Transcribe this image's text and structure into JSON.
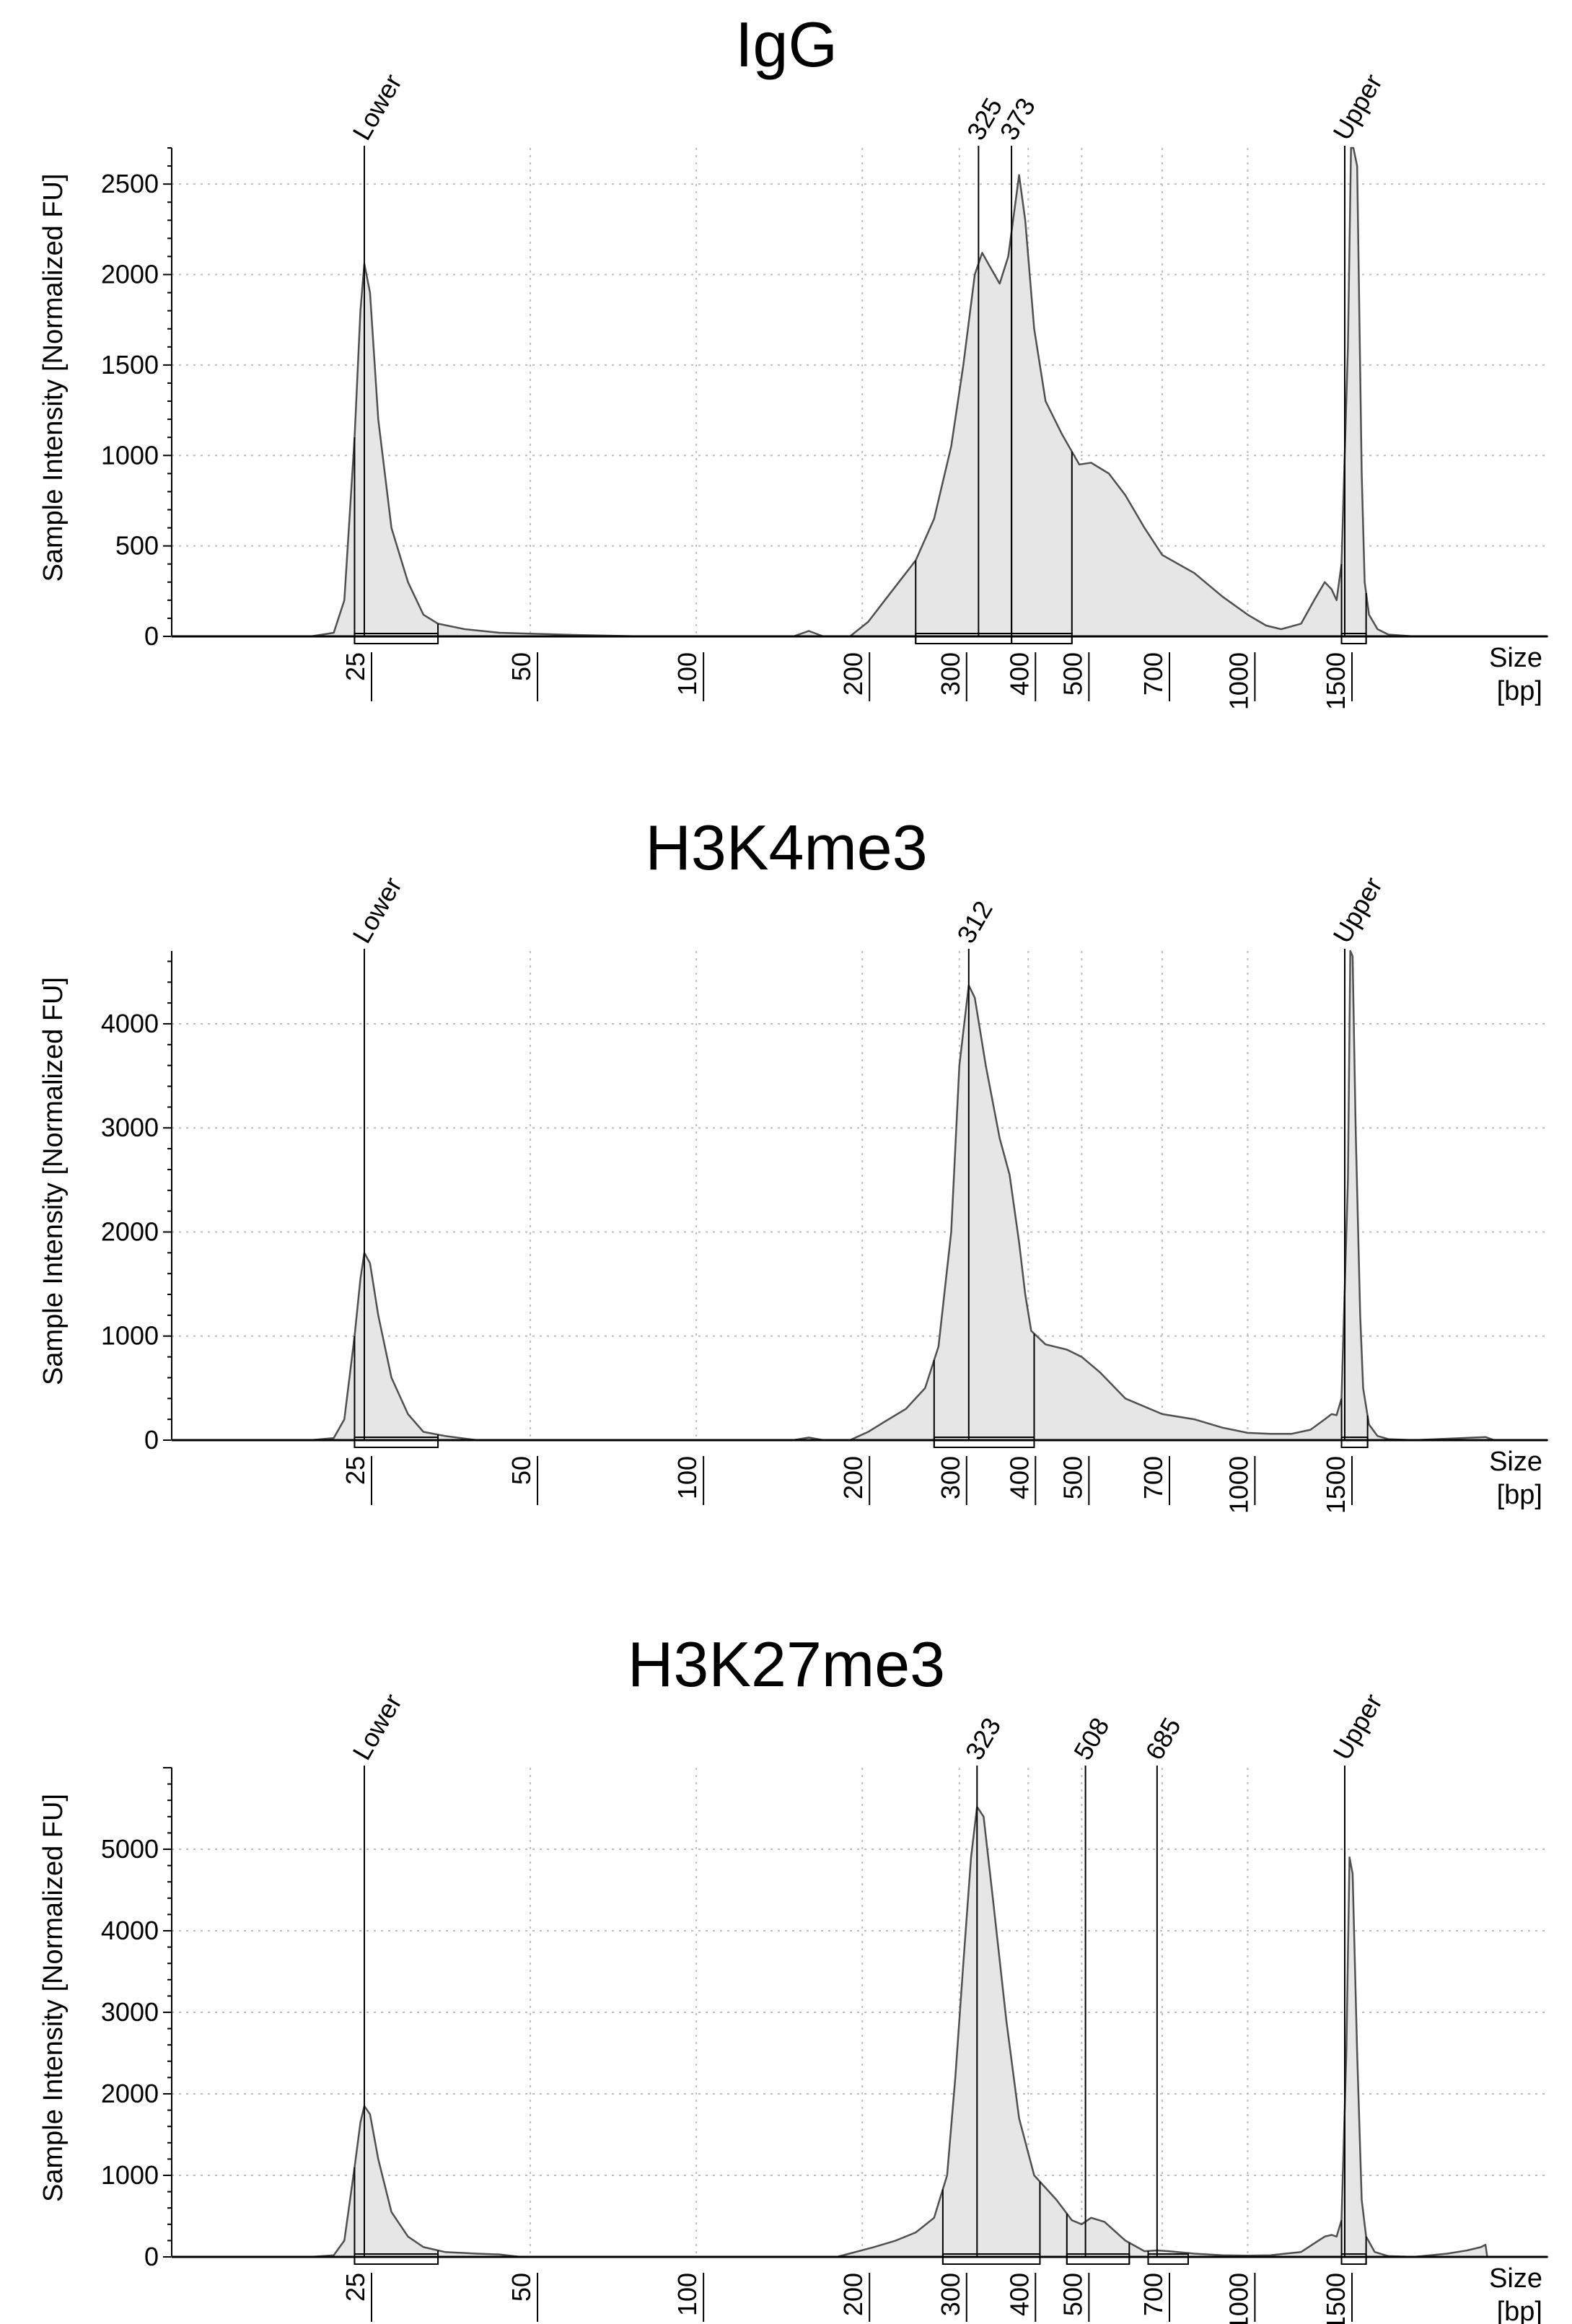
{
  "figure": {
    "size_axis": {
      "ticks": [
        25,
        50,
        100,
        200,
        300,
        400,
        500,
        700,
        1000,
        1500
      ],
      "label_line1": "Size",
      "label_line2": "[bp]"
    },
    "ylabel": "Sample Intensity [Normalized FU]"
  },
  "colors": {
    "trace_fill": "#e6e6e6",
    "trace_line": "#505050",
    "grid": "#bdbdbd"
  },
  "chart_data": [
    {
      "type": "area",
      "title": "IgG",
      "ylabel": "Sample Intensity [Normalized FU]",
      "xlabel": "Size [bp]",
      "x_scale": "log",
      "ylim": [
        0,
        2700
      ],
      "yticks": [
        0,
        500,
        1000,
        1500,
        2000,
        2500
      ],
      "grid": true,
      "peaks": [
        {
          "label": "Lower",
          "size": 25
        },
        {
          "label": "325",
          "size": 325
        },
        {
          "label": "373",
          "size": 373
        },
        {
          "label": "Upper",
          "size": 1500
        }
      ],
      "regions": [
        [
          24,
          34
        ],
        [
          250,
          373
        ],
        [
          373,
          480
        ],
        [
          1480,
          1640
        ]
      ],
      "trace": [
        [
          16,
          0
        ],
        [
          18,
          0
        ],
        [
          20,
          0
        ],
        [
          22,
          20
        ],
        [
          23,
          200
        ],
        [
          24,
          1100
        ],
        [
          24.6,
          1800
        ],
        [
          25,
          2060
        ],
        [
          25.6,
          1900
        ],
        [
          26.5,
          1200
        ],
        [
          28,
          600
        ],
        [
          30,
          300
        ],
        [
          32,
          120
        ],
        [
          34,
          70
        ],
        [
          38,
          40
        ],
        [
          44,
          20
        ],
        [
          50,
          15
        ],
        [
          60,
          8
        ],
        [
          80,
          0
        ],
        [
          120,
          0
        ],
        [
          150,
          0
        ],
        [
          160,
          30
        ],
        [
          170,
          0
        ],
        [
          190,
          0
        ],
        [
          205,
          80
        ],
        [
          225,
          240
        ],
        [
          250,
          420
        ],
        [
          270,
          650
        ],
        [
          290,
          1050
        ],
        [
          305,
          1500
        ],
        [
          320,
          2000
        ],
        [
          330,
          2120
        ],
        [
          340,
          2050
        ],
        [
          355,
          1950
        ],
        [
          368,
          2100
        ],
        [
          385,
          2550
        ],
        [
          395,
          2300
        ],
        [
          410,
          1700
        ],
        [
          430,
          1300
        ],
        [
          460,
          1120
        ],
        [
          495,
          950
        ],
        [
          520,
          960
        ],
        [
          560,
          900
        ],
        [
          600,
          780
        ],
        [
          650,
          600
        ],
        [
          700,
          450
        ],
        [
          800,
          350
        ],
        [
          900,
          220
        ],
        [
          1000,
          120
        ],
        [
          1080,
          60
        ],
        [
          1150,
          40
        ],
        [
          1250,
          70
        ],
        [
          1320,
          200
        ],
        [
          1380,
          300
        ],
        [
          1420,
          260
        ],
        [
          1450,
          200
        ],
        [
          1480,
          400
        ],
        [
          1520,
          1600
        ],
        [
          1540,
          2700
        ],
        [
          1555,
          2700
        ],
        [
          1580,
          2600
        ],
        [
          1610,
          900
        ],
        [
          1630,
          300
        ],
        [
          1660,
          120
        ],
        [
          1720,
          40
        ],
        [
          1800,
          10
        ],
        [
          2000,
          0
        ],
        [
          2800,
          0
        ]
      ]
    },
    {
      "type": "area",
      "title": "H3K4me3",
      "ylabel": "Sample Intensity [Normalized FU]",
      "xlabel": "Size [bp]",
      "x_scale": "log",
      "ylim": [
        0,
        4700
      ],
      "yticks": [
        0,
        1000,
        2000,
        3000,
        4000
      ],
      "grid": true,
      "peaks": [
        {
          "label": "Lower",
          "size": 25
        },
        {
          "label": "312",
          "size": 312
        },
        {
          "label": "Upper",
          "size": 1500
        }
      ],
      "regions": [
        [
          24,
          34
        ],
        [
          270,
          410
        ],
        [
          1480,
          1650
        ]
      ],
      "trace": [
        [
          16,
          0
        ],
        [
          18,
          0
        ],
        [
          20,
          0
        ],
        [
          22,
          20
        ],
        [
          23,
          200
        ],
        [
          24,
          1000
        ],
        [
          24.6,
          1550
        ],
        [
          25,
          1800
        ],
        [
          25.6,
          1700
        ],
        [
          26.5,
          1200
        ],
        [
          28,
          600
        ],
        [
          30,
          250
        ],
        [
          32,
          80
        ],
        [
          35,
          40
        ],
        [
          40,
          0
        ],
        [
          100,
          0
        ],
        [
          150,
          0
        ],
        [
          160,
          25
        ],
        [
          170,
          0
        ],
        [
          190,
          0
        ],
        [
          205,
          80
        ],
        [
          220,
          180
        ],
        [
          240,
          300
        ],
        [
          260,
          500
        ],
        [
          275,
          900
        ],
        [
          290,
          2000
        ],
        [
          300,
          3600
        ],
        [
          312,
          4370
        ],
        [
          320,
          4250
        ],
        [
          335,
          3600
        ],
        [
          355,
          2900
        ],
        [
          370,
          2550
        ],
        [
          385,
          1900
        ],
        [
          395,
          1400
        ],
        [
          405,
          1050
        ],
        [
          430,
          920
        ],
        [
          470,
          870
        ],
        [
          500,
          800
        ],
        [
          540,
          650
        ],
        [
          600,
          400
        ],
        [
          700,
          250
        ],
        [
          800,
          200
        ],
        [
          900,
          120
        ],
        [
          1000,
          70
        ],
        [
          1100,
          60
        ],
        [
          1200,
          60
        ],
        [
          1300,
          100
        ],
        [
          1380,
          200
        ],
        [
          1420,
          250
        ],
        [
          1450,
          240
        ],
        [
          1480,
          400
        ],
        [
          1520,
          2500
        ],
        [
          1535,
          4700
        ],
        [
          1550,
          4650
        ],
        [
          1570,
          3000
        ],
        [
          1600,
          1200
        ],
        [
          1620,
          500
        ],
        [
          1660,
          150
        ],
        [
          1720,
          40
        ],
        [
          1800,
          10
        ],
        [
          2000,
          0
        ],
        [
          2700,
          30
        ],
        [
          2800,
          0
        ]
      ]
    },
    {
      "type": "area",
      "title": "H3K27me3",
      "ylabel": "Sample Intensity [Normalized FU]",
      "xlabel": "Size [bp]",
      "x_scale": "log",
      "ylim": [
        0,
        6000
      ],
      "yticks": [
        0,
        1000,
        2000,
        3000,
        4000,
        5000
      ],
      "grid": true,
      "peaks": [
        {
          "label": "Lower",
          "size": 25
        },
        {
          "label": "323",
          "size": 323
        },
        {
          "label": "508",
          "size": 508
        },
        {
          "label": "685",
          "size": 685
        },
        {
          "label": "Upper",
          "size": 1500
        }
      ],
      "regions": [
        [
          24,
          34
        ],
        [
          280,
          420
        ],
        [
          470,
          610
        ],
        [
          660,
          780
        ],
        [
          1480,
          1640
        ]
      ],
      "trace": [
        [
          16,
          0
        ],
        [
          18,
          0
        ],
        [
          20,
          0
        ],
        [
          22,
          20
        ],
        [
          23,
          200
        ],
        [
          24,
          1100
        ],
        [
          24.6,
          1650
        ],
        [
          25,
          1850
        ],
        [
          25.6,
          1750
        ],
        [
          26.5,
          1200
        ],
        [
          28,
          550
        ],
        [
          30,
          250
        ],
        [
          32,
          120
        ],
        [
          35,
          60
        ],
        [
          40,
          40
        ],
        [
          44,
          30
        ],
        [
          48,
          0
        ],
        [
          100,
          0
        ],
        [
          150,
          0
        ],
        [
          180,
          0
        ],
        [
          210,
          120
        ],
        [
          230,
          200
        ],
        [
          250,
          300
        ],
        [
          270,
          480
        ],
        [
          285,
          1000
        ],
        [
          295,
          2200
        ],
        [
          305,
          3600
        ],
        [
          315,
          4900
        ],
        [
          323,
          5520
        ],
        [
          332,
          5400
        ],
        [
          345,
          4400
        ],
        [
          365,
          2900
        ],
        [
          385,
          1700
        ],
        [
          410,
          1000
        ],
        [
          450,
          700
        ],
        [
          480,
          450
        ],
        [
          500,
          400
        ],
        [
          520,
          480
        ],
        [
          550,
          430
        ],
        [
          600,
          200
        ],
        [
          650,
          70
        ],
        [
          685,
          80
        ],
        [
          720,
          70
        ],
        [
          800,
          40
        ],
        [
          900,
          20
        ],
        [
          1000,
          15
        ],
        [
          1100,
          20
        ],
        [
          1250,
          60
        ],
        [
          1330,
          180
        ],
        [
          1380,
          250
        ],
        [
          1420,
          270
        ],
        [
          1450,
          250
        ],
        [
          1480,
          450
        ],
        [
          1510,
          2500
        ],
        [
          1530,
          4900
        ],
        [
          1550,
          4700
        ],
        [
          1580,
          2500
        ],
        [
          1610,
          700
        ],
        [
          1640,
          250
        ],
        [
          1700,
          60
        ],
        [
          1800,
          10
        ],
        [
          2000,
          0
        ],
        [
          2300,
          40
        ],
        [
          2500,
          80
        ],
        [
          2650,
          120
        ],
        [
          2700,
          150
        ],
        [
          2720,
          0
        ],
        [
          2800,
          0
        ]
      ]
    }
  ]
}
